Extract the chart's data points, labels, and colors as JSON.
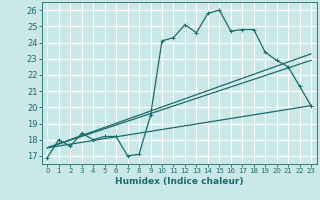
{
  "xlabel": "Humidex (Indice chaleur)",
  "xlim": [
    -0.5,
    23.5
  ],
  "ylim": [
    16.5,
    26.5
  ],
  "yticks": [
    17,
    18,
    19,
    20,
    21,
    22,
    23,
    24,
    25,
    26
  ],
  "xticks": [
    0,
    1,
    2,
    3,
    4,
    5,
    6,
    7,
    8,
    9,
    10,
    11,
    12,
    13,
    14,
    15,
    16,
    17,
    18,
    19,
    20,
    21,
    22,
    23
  ],
  "bg_color": "#cbe8e8",
  "grid_color": "#ffffff",
  "line_color": "#1a6b6b",
  "lines": [
    {
      "x": [
        0,
        1,
        2,
        3,
        4,
        5,
        6,
        7,
        8,
        9,
        10,
        11,
        12,
        13,
        14,
        15,
        16,
        17,
        18,
        19,
        20,
        21,
        22,
        23
      ],
      "y": [
        16.9,
        18.0,
        17.6,
        18.4,
        18.0,
        18.2,
        18.2,
        17.0,
        17.1,
        19.5,
        24.1,
        24.3,
        25.1,
        24.6,
        25.8,
        26.0,
        24.7,
        24.8,
        24.8,
        23.4,
        22.9,
        22.5,
        21.3,
        20.1
      ],
      "marker": true
    },
    {
      "x": [
        0,
        23
      ],
      "y": [
        17.5,
        23.3
      ],
      "marker": false
    },
    {
      "x": [
        0,
        23
      ],
      "y": [
        17.5,
        22.9
      ],
      "marker": false
    },
    {
      "x": [
        0,
        23
      ],
      "y": [
        17.5,
        20.1
      ],
      "marker": false
    }
  ]
}
